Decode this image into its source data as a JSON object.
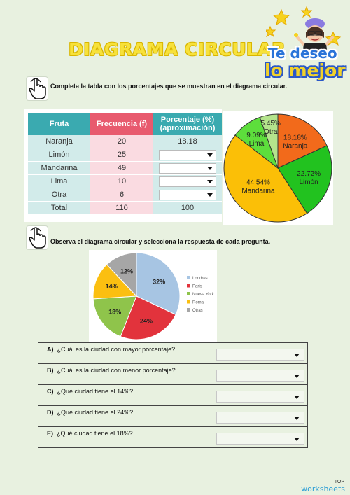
{
  "title": "DIAGRAMA CIRCULAR",
  "slogan_line1": "Te deseo",
  "slogan_line2": "lo mejor",
  "instruction1": "Completa la tabla con los porcentajes que se muestran en el diagrama circular.",
  "instruction2": "Observa el diagrama circular y selecciona la respuesta de cada pregunta.",
  "table": {
    "headers": [
      "Fruta",
      "Frecuencia (f)",
      "Porcentaje (%) (aproximación)"
    ],
    "rows": [
      {
        "fruit": "Naranja",
        "freq": "20",
        "pct": "18.18"
      },
      {
        "fruit": "Limón",
        "freq": "25",
        "pct": ""
      },
      {
        "fruit": "Mandarina",
        "freq": "49",
        "pct": ""
      },
      {
        "fruit": "Lima",
        "freq": "10",
        "pct": ""
      },
      {
        "fruit": "Otra",
        "freq": "6",
        "pct": ""
      }
    ],
    "total": {
      "label": "Total",
      "freq": "110",
      "pct": "100"
    }
  },
  "chart_data": [
    {
      "type": "pie",
      "slices": [
        {
          "label": "Naranja",
          "value": 18.18,
          "text": "18.18%",
          "color": "#f26a1b"
        },
        {
          "label": "Limón",
          "value": 22.72,
          "text": "22.72%",
          "color": "#22c21f"
        },
        {
          "label": "Mandarina",
          "value": 44.54,
          "text": "44.54%",
          "color": "#fbbf07"
        },
        {
          "label": "Lima",
          "value": 9.09,
          "text": "9.09%",
          "color": "#5dde3c"
        },
        {
          "label": "Otra",
          "value": 5.45,
          "text": "5.45%",
          "color": "#b4e48c"
        }
      ]
    },
    {
      "type": "pie",
      "slices": [
        {
          "label": "Londres",
          "value": 32,
          "text": "32%",
          "color": "#a7c5e3"
        },
        {
          "label": "Paris",
          "value": 24,
          "text": "24%",
          "color": "#e2333c"
        },
        {
          "label": "Nueva York",
          "value": 18,
          "text": "18%",
          "color": "#8fc44b"
        },
        {
          "label": "Roma",
          "value": 14,
          "text": "14%",
          "color": "#fbbf11"
        },
        {
          "label": "Otras",
          "value": 12,
          "text": "12%",
          "color": "#a6a6a6"
        }
      ],
      "legend": [
        "Londres",
        "Paris",
        "Nueva York",
        "Roma",
        "Otras"
      ]
    }
  ],
  "questions": [
    {
      "letter": "A)",
      "text": "¿Cuál es la ciudad con mayor porcentaje?"
    },
    {
      "letter": "B)",
      "text": "¿Cuál es la ciudad con menor porcentaje?"
    },
    {
      "letter": "C)",
      "text": "¿Qué ciudad tiene el 14%?"
    },
    {
      "letter": "D)",
      "text": "¿Qué ciudad tiene el 24%?"
    },
    {
      "letter": "E)",
      "text": "¿Qué ciudad tiene el 18%?"
    }
  ],
  "brand": {
    "top": "TOP",
    "name": "worksheets"
  }
}
